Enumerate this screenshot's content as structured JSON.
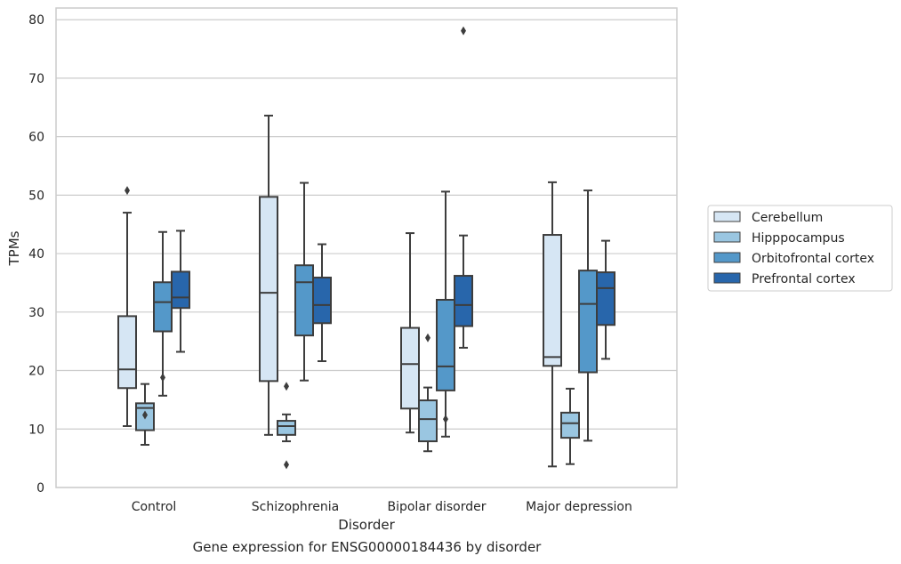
{
  "caption": "Gene expression for ENSG00000184436 by disorder",
  "chart_data": {
    "type": "box",
    "xlabel": "Disorder",
    "ylabel": "TPMs",
    "ylim": [
      0,
      82
    ],
    "yticks": [
      0,
      10,
      20,
      30,
      40,
      50,
      60,
      70,
      80
    ],
    "grid": true,
    "legend_position": "right",
    "categories": [
      "Control",
      "Schizophrenia",
      "Bipolar disorder",
      "Major depression"
    ],
    "series": [
      {
        "name": "Cerebellum",
        "color": "#d6e6f4",
        "boxes": [
          {
            "whisker_low": 10.5,
            "q1": 17.0,
            "median": 20.2,
            "q3": 29.3,
            "whisker_high": 47.0,
            "outliers": [
              50.8
            ]
          },
          {
            "whisker_low": 9.0,
            "q1": 18.2,
            "median": 33.3,
            "q3": 49.7,
            "whisker_high": 63.6,
            "outliers": []
          },
          {
            "whisker_low": 9.4,
            "q1": 13.5,
            "median": 21.1,
            "q3": 27.3,
            "whisker_high": 43.5,
            "outliers": []
          },
          {
            "whisker_low": 3.6,
            "q1": 20.8,
            "median": 22.3,
            "q3": 43.2,
            "whisker_high": 52.2,
            "outliers": []
          }
        ]
      },
      {
        "name": "Hipppocampus",
        "color": "#9ac6e1",
        "boxes": [
          {
            "whisker_low": 7.3,
            "q1": 9.8,
            "median": 13.6,
            "q3": 14.4,
            "whisker_high": 17.7,
            "outliers": [
              12.4
            ]
          },
          {
            "whisker_low": 7.9,
            "q1": 9.0,
            "median": 10.5,
            "q3": 11.4,
            "whisker_high": 12.5,
            "outliers": [
              17.3,
              3.9
            ]
          },
          {
            "whisker_low": 6.2,
            "q1": 7.9,
            "median": 11.7,
            "q3": 14.9,
            "whisker_high": 17.1,
            "outliers": [
              25.6
            ]
          },
          {
            "whisker_low": 4.0,
            "q1": 8.5,
            "median": 11.0,
            "q3": 12.8,
            "whisker_high": 16.9,
            "outliers": []
          }
        ]
      },
      {
        "name": "Orbitofrontal cortex",
        "color": "#5498c9",
        "boxes": [
          {
            "whisker_low": 15.7,
            "q1": 26.7,
            "median": 31.7,
            "q3": 35.1,
            "whisker_high": 43.7,
            "outliers": [
              18.8
            ]
          },
          {
            "whisker_low": 18.3,
            "q1": 26.0,
            "median": 35.1,
            "q3": 38.0,
            "whisker_high": 52.1,
            "outliers": []
          },
          {
            "whisker_low": 8.7,
            "q1": 16.6,
            "median": 20.7,
            "q3": 32.1,
            "whisker_high": 50.6,
            "outliers": [
              11.7
            ]
          },
          {
            "whisker_low": 8.0,
            "q1": 19.7,
            "median": 31.4,
            "q3": 37.1,
            "whisker_high": 50.8,
            "outliers": []
          }
        ]
      },
      {
        "name": "Prefrontal cortex",
        "color": "#2866ab",
        "boxes": [
          {
            "whisker_low": 23.2,
            "q1": 30.7,
            "median": 32.5,
            "q3": 36.9,
            "whisker_high": 43.9,
            "outliers": []
          },
          {
            "whisker_low": 21.6,
            "q1": 28.1,
            "median": 31.2,
            "q3": 35.9,
            "whisker_high": 41.6,
            "outliers": []
          },
          {
            "whisker_low": 23.9,
            "q1": 27.6,
            "median": 31.2,
            "q3": 36.2,
            "whisker_high": 43.1,
            "outliers": [
              78.1
            ]
          },
          {
            "whisker_low": 22.0,
            "q1": 27.8,
            "median": 34.1,
            "q3": 36.8,
            "whisker_high": 42.2,
            "outliers": []
          }
        ]
      }
    ]
  }
}
